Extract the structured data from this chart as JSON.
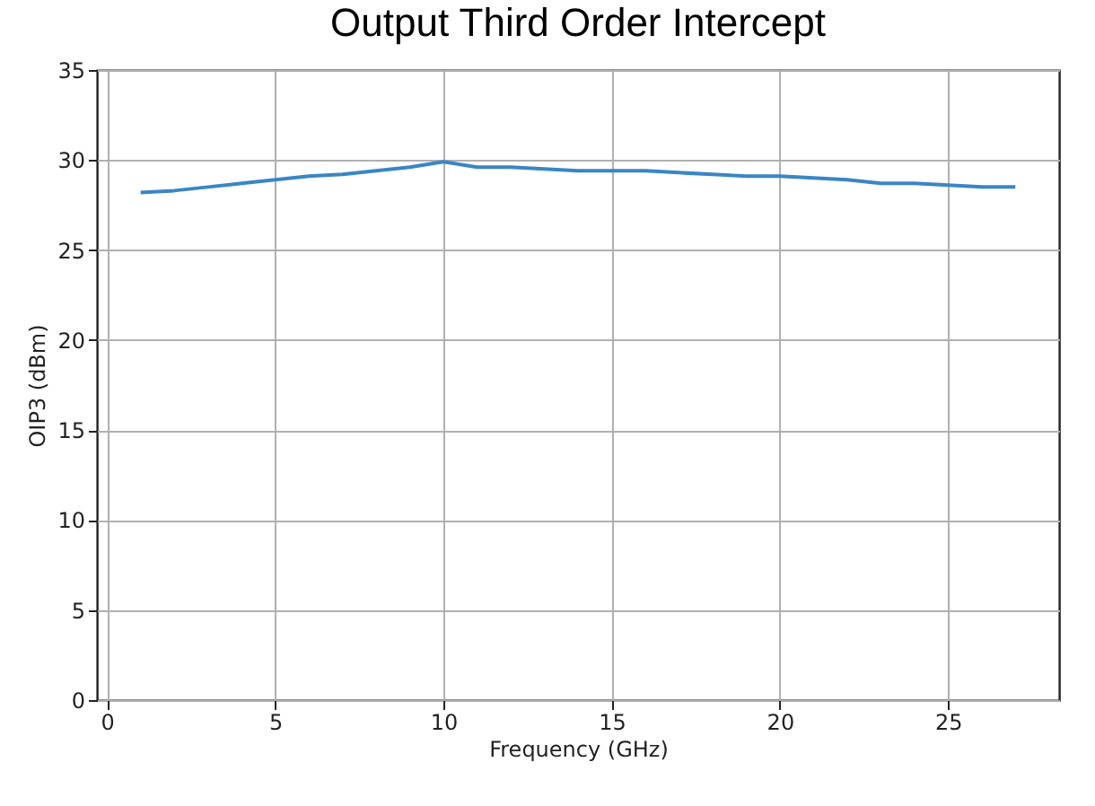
{
  "chart_data": {
    "type": "line",
    "title": "Output Third Order Intercept",
    "xlabel": "Frequency (GHz)",
    "ylabel": "OIP3 (dBm)",
    "x": [
      1,
      2,
      3,
      4,
      5,
      6,
      7,
      8,
      9,
      10,
      11,
      12,
      13,
      14,
      15,
      16,
      17,
      18,
      19,
      20,
      21,
      22,
      23,
      24,
      25,
      26,
      27
    ],
    "series": [
      {
        "color": "#3a86c4",
        "values": [
          28.2,
          28.3,
          28.5,
          28.7,
          28.9,
          29.1,
          29.2,
          29.4,
          29.6,
          29.9,
          29.6,
          29.6,
          29.5,
          29.4,
          29.4,
          29.4,
          29.3,
          29.2,
          29.1,
          29.1,
          29.0,
          28.9,
          28.7,
          28.7,
          28.6,
          28.5,
          28.5
        ]
      }
    ],
    "xlim": [
      -0.3,
      28.3
    ],
    "xticks": [
      0,
      5,
      10,
      15,
      20,
      25
    ],
    "ylim": [
      0,
      35
    ],
    "yticks": [
      0,
      5,
      10,
      15,
      20,
      25,
      30,
      35
    ],
    "grid": true
  }
}
